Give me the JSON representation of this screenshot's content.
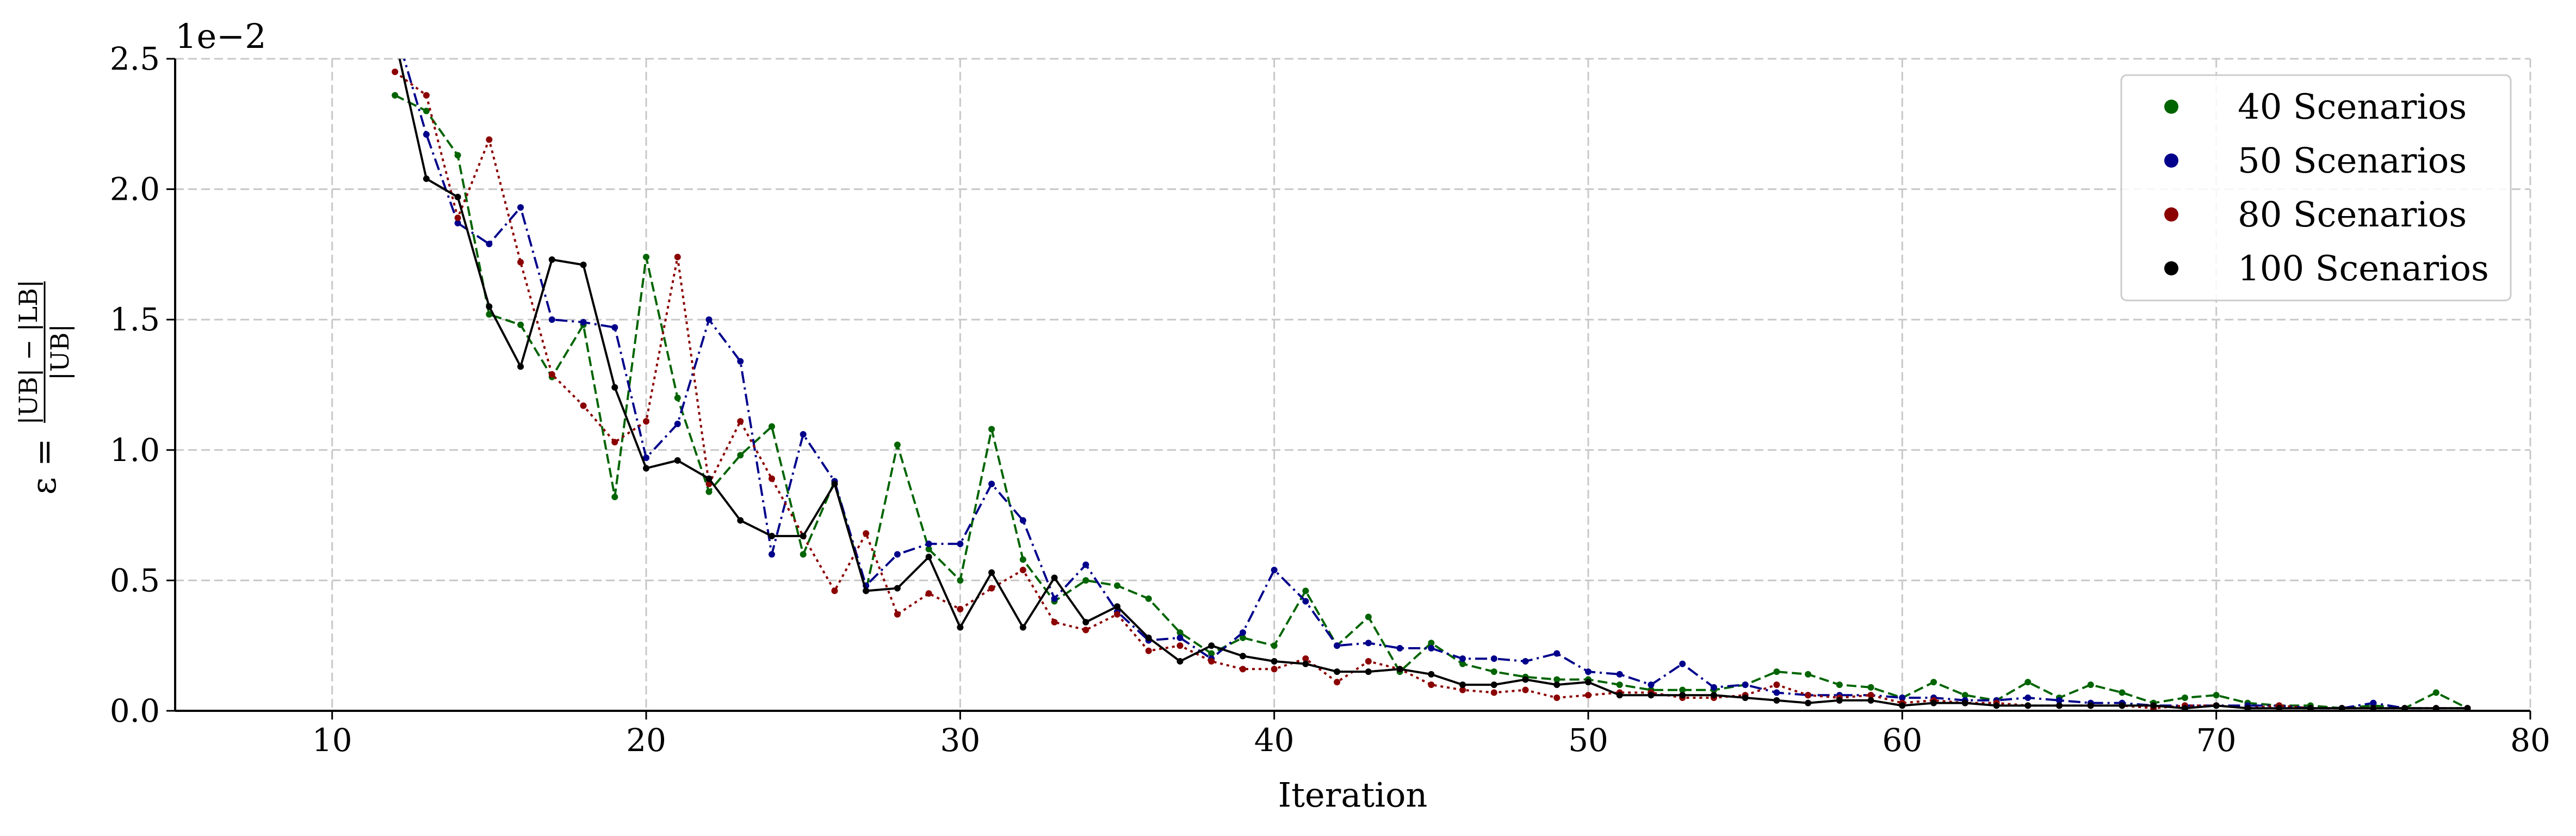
{
  "chart_data": {
    "type": "line",
    "xlabel": "Iteration",
    "ylabel": "ε = (|UB| − |LB|) / |UB|",
    "ylabel_parts": {
      "lhs": "ε =",
      "numerator": "|UB| − |LB|",
      "denominator": "|UB|"
    },
    "y_offset_label": "1e−2",
    "xlim": [
      5,
      80
    ],
    "ylim": [
      0,
      2.5
    ],
    "xticks": [
      10,
      20,
      30,
      40,
      50,
      60,
      70,
      80
    ],
    "yticks": [
      0.0,
      0.5,
      1.0,
      1.5,
      2.0,
      2.5
    ],
    "xtick_labels": [
      "10",
      "20",
      "30",
      "40",
      "50",
      "60",
      "70",
      "80"
    ],
    "ytick_labels": [
      "0.0",
      "0.5",
      "1.0",
      "1.5",
      "2.0",
      "2.5"
    ],
    "grid": true,
    "legend_position": "top-right",
    "series": [
      {
        "name": "40 Scenarios",
        "color": "#006400",
        "dash": "dashed",
        "x": [
          12,
          13,
          14,
          15,
          16,
          17,
          18,
          19,
          20,
          21,
          22,
          23,
          24,
          25,
          26,
          27,
          28,
          29,
          30,
          31,
          32,
          33,
          34,
          35,
          36,
          37,
          38,
          39,
          40,
          41,
          42,
          43,
          44,
          45,
          46,
          47,
          48,
          49,
          50,
          51,
          52,
          53,
          54,
          55,
          56,
          57,
          58,
          59,
          60,
          61,
          62,
          63,
          64,
          65,
          66,
          67,
          68,
          69,
          70,
          71,
          72,
          73,
          74,
          75,
          76,
          77,
          78
        ],
        "values": [
          2.36,
          2.3,
          2.13,
          1.52,
          1.48,
          1.28,
          1.48,
          0.82,
          1.74,
          1.2,
          0.84,
          0.98,
          1.09,
          0.6,
          0.88,
          0.46,
          1.02,
          0.62,
          0.5,
          1.08,
          0.58,
          0.42,
          0.5,
          0.48,
          0.43,
          0.3,
          0.22,
          0.28,
          0.25,
          0.46,
          0.25,
          0.36,
          0.15,
          0.26,
          0.18,
          0.15,
          0.13,
          0.12,
          0.12,
          0.1,
          0.08,
          0.08,
          0.08,
          0.1,
          0.15,
          0.14,
          0.1,
          0.09,
          0.05,
          0.11,
          0.06,
          0.04,
          0.11,
          0.05,
          0.1,
          0.07,
          0.03,
          0.05,
          0.06,
          0.03,
          0.02,
          0.02,
          0.01,
          0.02,
          0.01,
          0.07,
          0.01
        ]
      },
      {
        "name": "50 Scenarios",
        "color": "#00008b",
        "dash": "dashdot",
        "x": [
          12,
          13,
          14,
          15,
          16,
          17,
          18,
          19,
          20,
          21,
          22,
          23,
          24,
          25,
          26,
          27,
          28,
          29,
          30,
          31,
          32,
          33,
          34,
          35,
          36,
          37,
          38,
          39,
          40,
          41,
          42,
          43,
          44,
          45,
          46,
          47,
          48,
          49,
          50,
          51,
          52,
          53,
          54,
          55,
          56,
          57,
          58,
          59,
          60,
          61,
          62,
          63,
          64,
          65,
          66,
          67,
          68,
          69,
          70,
          71,
          72,
          73,
          74,
          75,
          76,
          77,
          78
        ],
        "values": [
          2.62,
          2.21,
          1.87,
          1.79,
          1.93,
          1.5,
          1.49,
          1.47,
          0.97,
          1.1,
          1.5,
          1.34,
          0.6,
          1.06,
          0.88,
          0.48,
          0.6,
          0.64,
          0.64,
          0.87,
          0.73,
          0.43,
          0.56,
          0.38,
          0.27,
          0.28,
          0.2,
          0.3,
          0.54,
          0.42,
          0.25,
          0.26,
          0.24,
          0.24,
          0.2,
          0.2,
          0.19,
          0.22,
          0.15,
          0.14,
          0.1,
          0.18,
          0.09,
          0.1,
          0.07,
          0.06,
          0.06,
          0.06,
          0.05,
          0.05,
          0.04,
          0.04,
          0.05,
          0.04,
          0.03,
          0.03,
          0.02,
          0.02,
          0.02,
          0.02,
          0.02,
          0.01,
          0.01,
          0.03,
          0.01,
          0.01,
          0.01
        ]
      },
      {
        "name": "80 Scenarios",
        "color": "#8b0000",
        "dash": "dotted",
        "x": [
          12,
          13,
          14,
          15,
          16,
          17,
          18,
          19,
          20,
          21,
          22,
          23,
          24,
          25,
          26,
          27,
          28,
          29,
          30,
          31,
          32,
          33,
          34,
          35,
          36,
          37,
          38,
          39,
          40,
          41,
          42,
          43,
          44,
          45,
          46,
          47,
          48,
          49,
          50,
          51,
          52,
          53,
          54,
          55,
          56,
          57,
          58,
          59,
          60,
          61,
          62,
          63,
          64,
          65,
          66,
          67,
          68,
          69,
          70,
          71,
          72,
          73,
          74,
          75,
          76,
          77,
          78
        ],
        "values": [
          2.45,
          2.36,
          1.89,
          2.19,
          1.72,
          1.29,
          1.17,
          1.03,
          1.11,
          1.74,
          0.87,
          1.11,
          0.89,
          0.67,
          0.46,
          0.68,
          0.37,
          0.45,
          0.39,
          0.47,
          0.54,
          0.34,
          0.31,
          0.37,
          0.23,
          0.25,
          0.19,
          0.16,
          0.16,
          0.2,
          0.11,
          0.19,
          0.16,
          0.1,
          0.08,
          0.07,
          0.08,
          0.05,
          0.06,
          0.07,
          0.07,
          0.05,
          0.05,
          0.06,
          0.1,
          0.06,
          0.05,
          0.06,
          0.03,
          0.04,
          0.03,
          0.03,
          0.02,
          0.02,
          0.02,
          0.02,
          0.01,
          0.02,
          0.02,
          0.01,
          0.02,
          0.01,
          0.01,
          0.01,
          0.01,
          0.01,
          0.01
        ]
      },
      {
        "name": "100 Scenarios",
        "color": "#000000",
        "dash": "solid",
        "x": [
          12,
          13,
          14,
          15,
          16,
          17,
          18,
          19,
          20,
          21,
          22,
          23,
          24,
          25,
          26,
          27,
          28,
          29,
          30,
          31,
          32,
          33,
          34,
          35,
          36,
          37,
          38,
          39,
          40,
          41,
          42,
          43,
          44,
          45,
          46,
          47,
          48,
          49,
          50,
          51,
          52,
          53,
          54,
          55,
          56,
          57,
          58,
          59,
          60,
          61,
          62,
          63,
          64,
          65,
          66,
          67,
          68,
          69,
          70,
          71,
          72,
          73,
          74,
          75,
          76,
          77,
          78
        ],
        "values": [
          2.58,
          2.04,
          1.97,
          1.55,
          1.32,
          1.73,
          1.71,
          1.24,
          0.93,
          0.96,
          0.89,
          0.73,
          0.67,
          0.67,
          0.87,
          0.46,
          0.47,
          0.59,
          0.32,
          0.53,
          0.32,
          0.51,
          0.34,
          0.4,
          0.28,
          0.19,
          0.25,
          0.21,
          0.19,
          0.18,
          0.15,
          0.15,
          0.16,
          0.14,
          0.1,
          0.1,
          0.12,
          0.1,
          0.11,
          0.06,
          0.06,
          0.06,
          0.06,
          0.05,
          0.04,
          0.03,
          0.04,
          0.04,
          0.02,
          0.03,
          0.03,
          0.02,
          0.02,
          0.02,
          0.02,
          0.02,
          0.02,
          0.01,
          0.02,
          0.01,
          0.01,
          0.01,
          0.01,
          0.01,
          0.01,
          0.01,
          0.01
        ]
      }
    ]
  }
}
